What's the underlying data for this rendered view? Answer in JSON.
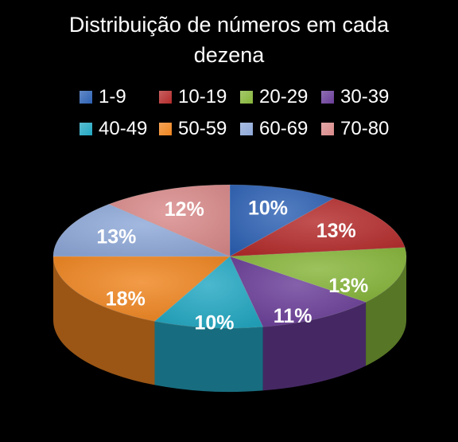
{
  "chart_data": {
    "type": "pie",
    "title": "Distribuição de números em cada dezena",
    "title_lines": [
      "Distribuição de números em cada",
      "dezena"
    ],
    "legend_placement": "top",
    "categories": [
      "1-9",
      "10-19",
      "20-29",
      "30-39",
      "40-49",
      "50-59",
      "60-69",
      "70-80"
    ],
    "values": [
      10,
      13,
      13,
      11,
      10,
      18,
      13,
      12
    ],
    "labels": [
      "10%",
      "13%",
      "13%",
      "11%",
      "10%",
      "18%",
      "13%",
      "12%"
    ],
    "colors": [
      "#2e62b4",
      "#b42b2b",
      "#86b53a",
      "#6a3e98",
      "#23a8c3",
      "#ef8520",
      "#8ea8d8",
      "#d98a8a"
    ]
  }
}
